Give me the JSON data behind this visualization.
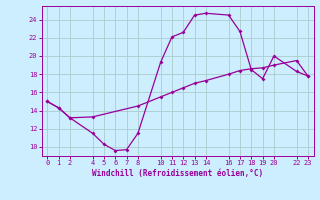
{
  "xlabel": "Windchill (Refroidissement éolien,°C)",
  "bg_color": "#cceeff",
  "grid_color": "#aacccc",
  "line_color": "#990099",
  "ylim": [
    9.0,
    25.5
  ],
  "xlim": [
    -0.5,
    23.5
  ],
  "yticks": [
    10,
    12,
    14,
    16,
    18,
    20,
    22,
    24
  ],
  "xticks": [
    0,
    1,
    2,
    4,
    5,
    6,
    7,
    8,
    10,
    11,
    12,
    13,
    14,
    16,
    17,
    18,
    19,
    20,
    22,
    23
  ],
  "line1_x": [
    0,
    1,
    2,
    4,
    5,
    6,
    7,
    8,
    10,
    11,
    12,
    13,
    14,
    16,
    17,
    18,
    19,
    20,
    22,
    23
  ],
  "line1_y": [
    15.0,
    14.3,
    13.2,
    11.5,
    10.3,
    9.6,
    9.7,
    11.5,
    19.3,
    22.1,
    22.6,
    24.5,
    24.7,
    24.5,
    22.7,
    18.5,
    17.5,
    20.0,
    18.3,
    17.8
  ],
  "line2_x": [
    0,
    1,
    2,
    4,
    8,
    10,
    11,
    12,
    13,
    14,
    16,
    17,
    18,
    19,
    20,
    22,
    23
  ],
  "line2_y": [
    15.0,
    14.3,
    13.2,
    13.3,
    14.5,
    15.5,
    16.0,
    16.5,
    17.0,
    17.3,
    18.0,
    18.4,
    18.6,
    18.7,
    19.0,
    19.5,
    17.8
  ],
  "figw": 3.2,
  "figh": 2.0,
  "dpi": 100
}
